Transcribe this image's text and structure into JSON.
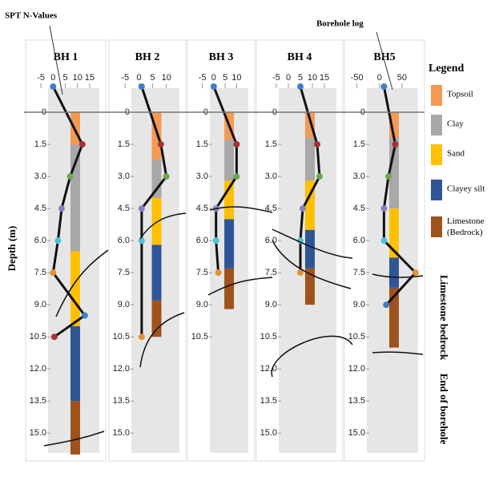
{
  "figure": {
    "annotations": [
      "SPT N-Values",
      "Borehole log",
      "Limestone bedrock",
      "End of borehole"
    ],
    "ylabel": "Depth (m)"
  },
  "legend": {
    "title": "Legend",
    "series": [
      {
        "name": "Topsoil",
        "color": "#f39a52"
      },
      {
        "name": "Clay",
        "color": "#a8a8a8"
      },
      {
        "name": "Sand",
        "color": "#ffc000"
      },
      {
        "name": "Clayey silt",
        "color": "#2f5597"
      },
      {
        "name": "Limestone (Bedrock)",
        "color": "#a0521d"
      }
    ]
  },
  "chart_data": [
    {
      "type": "borehole",
      "title": "BH 1",
      "xlim": [
        -8,
        17
      ],
      "xticks": [
        -5,
        0,
        5,
        10,
        15
      ],
      "ylim": [
        -1.5,
        16
      ],
      "yticks": [
        0,
        1.5,
        {
          "value": 3,
          "label": "3.0"
        },
        4.5,
        {
          "value": 6,
          "label": "6.0"
        },
        7.5,
        {
          "value": 9,
          "label": "9.0"
        },
        10.5,
        {
          "value": 12,
          "label": "12.0"
        },
        13.5,
        {
          "value": 15,
          "label": "15.0"
        }
      ],
      "layers": [
        1.5,
        5,
        3.5,
        3.5,
        2.5
      ],
      "spt": {
        "depth": [
          -1.2,
          1.5,
          3,
          4.5,
          6,
          7.5,
          9.5,
          10.5
        ],
        "values": [
          0,
          12,
          7,
          3.5,
          2,
          0,
          13,
          0.5
        ],
        "colors": [
          "#3f7fc8",
          "#a83232",
          "#6aa84f",
          "#8e7cc3",
          "#4fc1d9",
          "#e69138",
          "#3f7fc8",
          "#a83232"
        ]
      }
    },
    {
      "type": "borehole",
      "title": "BH 2",
      "xlim": [
        -8,
        13
      ],
      "xticks": [
        -5,
        0,
        5,
        10
      ],
      "ylim": [
        -1.5,
        16
      ],
      "yticks": [
        0,
        1.5,
        {
          "value": 3,
          "label": "3.0"
        },
        4.5,
        {
          "value": 6,
          "label": "6.0"
        },
        7.5,
        {
          "value": 9,
          "label": "9.0"
        },
        10.5,
        {
          "value": 12,
          "label": "12.0"
        },
        13.5,
        {
          "value": 15,
          "label": "15.0"
        }
      ],
      "layers": [
        2.2,
        1.8,
        2.2,
        2.6,
        1.7
      ],
      "spt": {
        "depth": [
          -1.2,
          1.5,
          3,
          4.5,
          6,
          10.5
        ],
        "values": [
          1,
          8,
          10,
          1,
          1,
          1
        ],
        "colors": [
          "#3f7fc8",
          "#a83232",
          "#6aa84f",
          "#8e7cc3",
          "#4fc1d9",
          "#e69138"
        ]
      }
    },
    {
      "type": "borehole",
      "title": "BH 3",
      "xlim": [
        -8,
        13
      ],
      "xticks": [
        -5,
        0,
        5,
        10
      ],
      "ylim": [
        -1.5,
        16
      ],
      "yticks": [
        0,
        1.5,
        {
          "value": 3,
          "label": "3.0"
        },
        4.5,
        {
          "value": 6,
          "label": "6.0"
        },
        7.5,
        {
          "value": 9,
          "label": "9.0"
        },
        10.5
      ],
      "layers": [
        1.3,
        1.9,
        1.8,
        2.3,
        1.9
      ],
      "spt": {
        "depth": [
          -1.2,
          1.5,
          3,
          4.5,
          6,
          7.5
        ],
        "values": [
          0,
          10,
          10,
          1,
          1,
          2
        ],
        "colors": [
          "#3f7fc8",
          "#a83232",
          "#6aa84f",
          "#8e7cc3",
          "#4fc1d9",
          "#e69138"
        ]
      }
    },
    {
      "type": "borehole",
      "title": "BH 4",
      "xlim": [
        -10,
        18
      ],
      "xticks": [
        -5,
        0,
        5,
        10,
        15
      ],
      "ylim": [
        -1.5,
        16
      ],
      "yticks": [
        0,
        1.5,
        {
          "value": 3,
          "label": "3.0"
        },
        4.5,
        {
          "value": 6,
          "label": "6.0"
        },
        7.5,
        {
          "value": 9,
          "label": "9.0"
        },
        10.5,
        {
          "value": 12,
          "label": "12.0"
        },
        13.5,
        {
          "value": 15,
          "label": "15.0"
        }
      ],
      "layers": [
        1.2,
        2,
        2.3,
        1.8,
        1.7
      ],
      "spt": {
        "depth": [
          -1.2,
          1.5,
          3,
          4.5,
          6,
          7.5
        ],
        "values": [
          5,
          12,
          13,
          6,
          5,
          5
        ],
        "colors": [
          "#3f7fc8",
          "#a83232",
          "#6aa84f",
          "#8e7cc3",
          "#4fc1d9",
          "#e69138"
        ]
      }
    },
    {
      "type": "borehole",
      "title": "BH5",
      "xlim": [
        -60,
        75
      ],
      "xticks": [
        -50,
        0,
        50
      ],
      "ylim": [
        -1.5,
        16
      ],
      "yticks": [
        0,
        1.5,
        {
          "value": 3,
          "label": "3.0"
        },
        4.5,
        {
          "value": 6,
          "label": "6.0"
        },
        7.5,
        {
          "value": 9,
          "label": "9.0"
        },
        10.5,
        {
          "value": 12,
          "label": "12.0"
        },
        13.5,
        {
          "value": 15,
          "label": "15.0"
        }
      ],
      "layers": [
        1.2,
        3.3,
        2.3,
        1.4,
        2.8
      ],
      "spt": {
        "depth": [
          -1.2,
          1.5,
          3,
          4.5,
          6,
          7.5,
          9
        ],
        "values": [
          10,
          35,
          20,
          10,
          10,
          80,
          15
        ],
        "colors": [
          "#3f7fc8",
          "#a83232",
          "#6aa84f",
          "#8e7cc3",
          "#4fc1d9",
          "#e69138",
          "#3f7fc8"
        ]
      }
    }
  ]
}
